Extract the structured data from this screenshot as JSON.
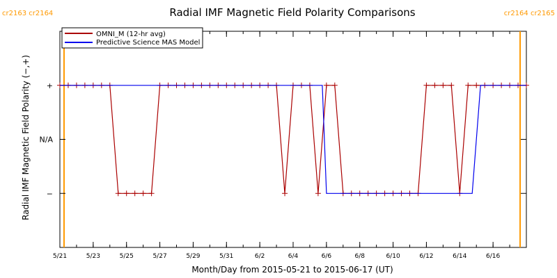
{
  "chart_data": {
    "type": "line",
    "title": "Radial IMF Magnetic Field Polarity Comparisons",
    "xlabel": "Month/Day from 2015-05-21 to 2015-06-17 (UT)",
    "ylabel": "Radial IMF Magnetic Field Polarity (−,+)",
    "x_range": [
      "2015-05-21",
      "2015-06-18"
    ],
    "ylim": [
      -2,
      2
    ],
    "y_ticks": [
      {
        "value": 1,
        "label": "+"
      },
      {
        "value": 0,
        "label": "N/A"
      },
      {
        "value": -1,
        "label": "−"
      }
    ],
    "x_ticks": [
      {
        "date": "2015-05-21",
        "label": "5/21"
      },
      {
        "date": "2015-05-23",
        "label": "5/23"
      },
      {
        "date": "2015-05-25",
        "label": "5/25"
      },
      {
        "date": "2015-05-27",
        "label": "5/27"
      },
      {
        "date": "2015-05-29",
        "label": "5/29"
      },
      {
        "date": "2015-05-31",
        "label": "5/31"
      },
      {
        "date": "2015-06-02",
        "label": "6/2"
      },
      {
        "date": "2015-06-04",
        "label": "6/4"
      },
      {
        "date": "2015-06-06",
        "label": "6/6"
      },
      {
        "date": "2015-06-08",
        "label": "6/8"
      },
      {
        "date": "2015-06-10",
        "label": "6/10"
      },
      {
        "date": "2015-06-12",
        "label": "6/12"
      },
      {
        "date": "2015-06-14",
        "label": "6/14"
      },
      {
        "date": "2015-06-16",
        "label": "6/16"
      }
    ],
    "carrington_boundaries": [
      {
        "date": "2015-05-21 06:00",
        "label": "cr2163 cr2164",
        "color": "#ff9900"
      },
      {
        "date": "2015-06-17 15:00",
        "label": "cr2164 cr2165",
        "color": "#ff9900"
      }
    ],
    "legend_position": "top-left",
    "series": [
      {
        "name": "OMNI_M (12-hr avg)",
        "color": "#aa0000",
        "markers": true,
        "points": [
          {
            "x": "2015-05-21 00:00",
            "y": 1
          },
          {
            "x": "2015-05-21 12:00",
            "y": 1
          },
          {
            "x": "2015-05-22 00:00",
            "y": 1
          },
          {
            "x": "2015-05-22 12:00",
            "y": 1
          },
          {
            "x": "2015-05-23 00:00",
            "y": 1
          },
          {
            "x": "2015-05-23 12:00",
            "y": 1
          },
          {
            "x": "2015-05-24 00:00",
            "y": 1
          },
          {
            "x": "2015-05-24 12:00",
            "y": -1
          },
          {
            "x": "2015-05-25 00:00",
            "y": -1
          },
          {
            "x": "2015-05-25 12:00",
            "y": -1
          },
          {
            "x": "2015-05-26 00:00",
            "y": -1
          },
          {
            "x": "2015-05-26 12:00",
            "y": -1
          },
          {
            "x": "2015-05-27 00:00",
            "y": 1
          },
          {
            "x": "2015-05-27 12:00",
            "y": 1
          },
          {
            "x": "2015-05-28 00:00",
            "y": 1
          },
          {
            "x": "2015-05-28 12:00",
            "y": 1
          },
          {
            "x": "2015-05-29 00:00",
            "y": 1
          },
          {
            "x": "2015-05-29 12:00",
            "y": 1
          },
          {
            "x": "2015-05-30 00:00",
            "y": 1
          },
          {
            "x": "2015-05-30 12:00",
            "y": 1
          },
          {
            "x": "2015-05-31 00:00",
            "y": 1
          },
          {
            "x": "2015-05-31 12:00",
            "y": 1
          },
          {
            "x": "2015-06-01 00:00",
            "y": 1
          },
          {
            "x": "2015-06-01 12:00",
            "y": 1
          },
          {
            "x": "2015-06-02 00:00",
            "y": 1
          },
          {
            "x": "2015-06-02 12:00",
            "y": 1
          },
          {
            "x": "2015-06-03 00:00",
            "y": 1
          },
          {
            "x": "2015-06-03 12:00",
            "y": -1
          },
          {
            "x": "2015-06-04 00:00",
            "y": 1
          },
          {
            "x": "2015-06-04 12:00",
            "y": 1
          },
          {
            "x": "2015-06-05 00:00",
            "y": 1
          },
          {
            "x": "2015-06-05 12:00",
            "y": -1
          },
          {
            "x": "2015-06-06 00:00",
            "y": 1
          },
          {
            "x": "2015-06-06 12:00",
            "y": 1
          },
          {
            "x": "2015-06-07 00:00",
            "y": -1
          },
          {
            "x": "2015-06-07 12:00",
            "y": -1
          },
          {
            "x": "2015-06-08 00:00",
            "y": -1
          },
          {
            "x": "2015-06-08 12:00",
            "y": -1
          },
          {
            "x": "2015-06-09 00:00",
            "y": -1
          },
          {
            "x": "2015-06-09 12:00",
            "y": -1
          },
          {
            "x": "2015-06-10 00:00",
            "y": -1
          },
          {
            "x": "2015-06-10 12:00",
            "y": -1
          },
          {
            "x": "2015-06-11 00:00",
            "y": -1
          },
          {
            "x": "2015-06-11 12:00",
            "y": -1
          },
          {
            "x": "2015-06-12 00:00",
            "y": 1
          },
          {
            "x": "2015-06-12 12:00",
            "y": 1
          },
          {
            "x": "2015-06-13 00:00",
            "y": 1
          },
          {
            "x": "2015-06-13 12:00",
            "y": 1
          },
          {
            "x": "2015-06-14 00:00",
            "y": -1
          },
          {
            "x": "2015-06-14 12:00",
            "y": 1
          },
          {
            "x": "2015-06-15 00:00",
            "y": 1
          },
          {
            "x": "2015-06-15 12:00",
            "y": 1
          },
          {
            "x": "2015-06-16 00:00",
            "y": 1
          },
          {
            "x": "2015-06-16 12:00",
            "y": 1
          },
          {
            "x": "2015-06-17 00:00",
            "y": 1
          },
          {
            "x": "2015-06-17 12:00",
            "y": 1
          },
          {
            "x": "2015-06-18 00:00",
            "y": 1
          }
        ]
      },
      {
        "name": "Predictive Science MAS Model",
        "color": "#0000ee",
        "markers": false,
        "points": [
          {
            "x": "2015-05-21 00:00",
            "y": 1
          },
          {
            "x": "2015-06-05 18:00",
            "y": 1
          },
          {
            "x": "2015-06-06 00:00",
            "y": -1
          },
          {
            "x": "2015-06-14 18:00",
            "y": -1
          },
          {
            "x": "2015-06-15 06:00",
            "y": 1
          },
          {
            "x": "2015-06-18 00:00",
            "y": 1
          }
        ]
      }
    ]
  }
}
